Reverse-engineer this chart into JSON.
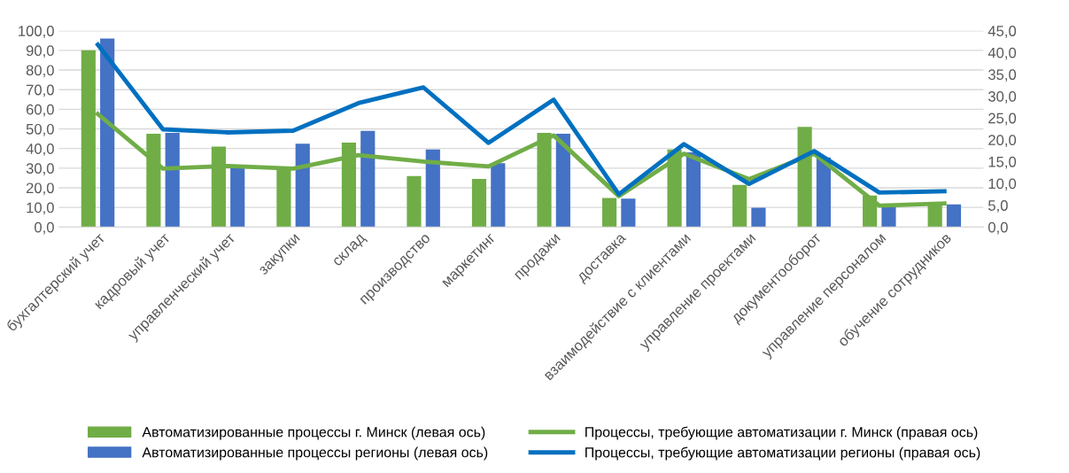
{
  "chart_data": {
    "type": "bar",
    "categories": [
      "бухгалтерский учет",
      "кадровый учет",
      "управленческий учет",
      "закупки",
      "склад",
      "производство",
      "маркетинг",
      "продажи",
      "доставка",
      "взаимодействие с клиентами",
      "управление проектами",
      "документооборот",
      "управление персоналом",
      "обучение сотрудников"
    ],
    "series": [
      {
        "name": "Автоматизированные процессы г. Минск (левая ось)",
        "color": "#70ad47",
        "values": [
          90,
          47.5,
          41,
          29.5,
          43,
          26,
          24.5,
          48,
          14.8,
          39.5,
          21.5,
          51,
          16,
          11.5
        ]
      },
      {
        "name": "Автоматизированные процессы регионы (левая ось)",
        "color": "#4472c4",
        "values": [
          96,
          48,
          30,
          42.5,
          49,
          39.5,
          32.5,
          47.5,
          14.5,
          38,
          9.9,
          35.4,
          10.8,
          11.5
        ]
      },
      {
        "name": "Процессы, требующие автоматизации г. Минск (правая ось)",
        "color": "#70ad47",
        "type": "line",
        "axis": "y2",
        "values": [
          25.9,
          13.4,
          14,
          13.4,
          16.5,
          15,
          13.9,
          21,
          7.1,
          16.8,
          11,
          16.8,
          4.9,
          5.4
        ]
      },
      {
        "name": "Процессы, требующие автоматизации регионы (правая ось)",
        "color": "#0070c0",
        "type": "line",
        "axis": "y2",
        "values": [
          41.8,
          22.4,
          21.7,
          22.1,
          28.4,
          32,
          19.3,
          29.2,
          7.5,
          19,
          9.9,
          17.4,
          7.9,
          8.2
        ]
      }
    ],
    "ylim": [
      0,
      100
    ],
    "yticks": [
      {
        "value": 0,
        "label": "0,0"
      },
      {
        "value": 10,
        "label": "10,0"
      },
      {
        "value": 20,
        "label": "20,0"
      },
      {
        "value": 30,
        "label": "30,0"
      },
      {
        "value": 40,
        "label": "40,0"
      },
      {
        "value": 50,
        "label": "50,0"
      },
      {
        "value": 60,
        "label": "60,0"
      },
      {
        "value": 70,
        "label": "70,0"
      },
      {
        "value": 80,
        "label": "80,0"
      },
      {
        "value": 90,
        "label": "90,0"
      },
      {
        "value": 100,
        "label": "100,0"
      }
    ],
    "y2lim": [
      0,
      45
    ],
    "y2ticks": [
      {
        "value": 0,
        "label": "0,0"
      },
      {
        "value": 5,
        "label": "5,0"
      },
      {
        "value": 10,
        "label": "10,0"
      },
      {
        "value": 15,
        "label": "15,0"
      },
      {
        "value": 20,
        "label": "20,0"
      },
      {
        "value": 25,
        "label": "25,0"
      },
      {
        "value": 30,
        "label": "30,0"
      },
      {
        "value": 35,
        "label": "35,0"
      },
      {
        "value": 40,
        "label": "40,0"
      },
      {
        "value": 45,
        "label": "45,0"
      }
    ],
    "grid": "y",
    "legend": "bottom",
    "marker": "none",
    "line_style": "solid"
  }
}
